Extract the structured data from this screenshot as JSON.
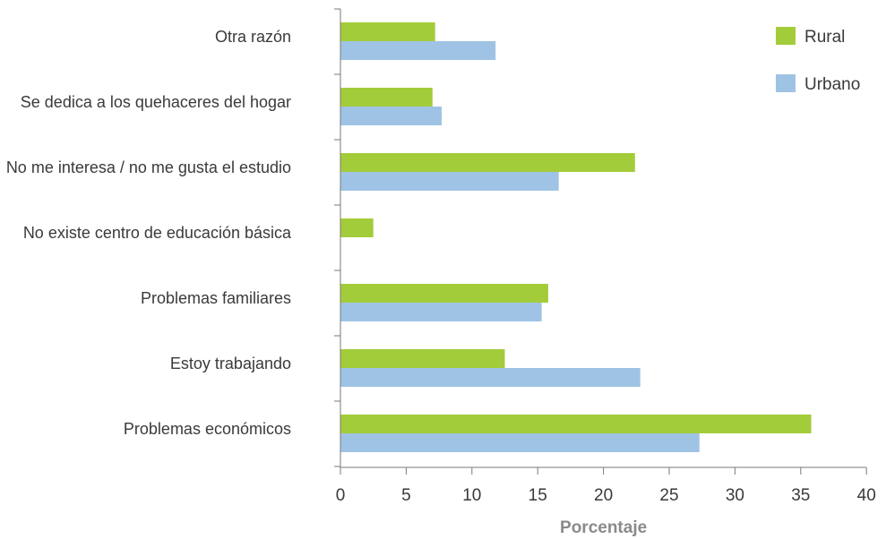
{
  "chart_data": {
    "type": "bar",
    "orientation": "horizontal",
    "categories": [
      "Otra razón",
      "Se dedica a los quehaceres del hogar",
      "No me interesa / no me gusta el estudio",
      "No existe centro de educación básica",
      "Problemas familiares",
      "Estoy trabajando",
      "Problemas económicos"
    ],
    "series": [
      {
        "name": "Rural",
        "color": "#a3cc3a",
        "values": [
          7.2,
          7.0,
          22.4,
          2.5,
          15.8,
          12.5,
          35.8
        ]
      },
      {
        "name": "Urbano",
        "color": "#9fc3e4",
        "values": [
          11.8,
          7.7,
          16.6,
          null,
          15.3,
          22.8,
          27.3
        ]
      }
    ],
    "xlabel": "Porcentaje",
    "xlim": [
      0,
      40
    ],
    "xticks": [
      "0",
      "5",
      "10",
      "15",
      "20",
      "25",
      "30",
      "35",
      "40"
    ],
    "legend_position": "top-right",
    "grid": false
  }
}
